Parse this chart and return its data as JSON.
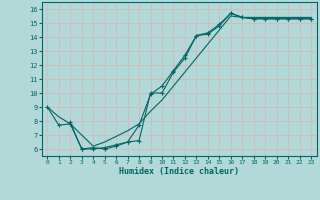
{
  "xlabel": "Humidex (Indice chaleur)",
  "bg_color": "#b2d8d8",
  "grid_color": "#d4b8b8",
  "line_color": "#006666",
  "xlim": [
    -0.5,
    23.5
  ],
  "ylim": [
    5.5,
    16.5
  ],
  "yticks": [
    6,
    7,
    8,
    9,
    10,
    11,
    12,
    13,
    14,
    15,
    16
  ],
  "xticks": [
    0,
    1,
    2,
    3,
    4,
    5,
    6,
    7,
    8,
    9,
    10,
    11,
    12,
    13,
    14,
    15,
    16,
    17,
    18,
    19,
    20,
    21,
    22,
    23
  ],
  "line1_x": [
    0,
    1,
    2,
    3,
    4,
    5,
    6,
    7,
    8,
    9,
    10,
    11,
    12,
    13,
    14,
    15,
    16,
    17,
    18,
    19,
    20,
    21,
    22,
    23
  ],
  "line1_y": [
    9.0,
    7.7,
    7.8,
    6.0,
    6.0,
    6.1,
    6.3,
    6.5,
    6.6,
    10.0,
    10.0,
    11.5,
    12.5,
    14.1,
    14.2,
    14.8,
    15.7,
    15.4,
    15.3,
    15.3,
    15.3,
    15.3,
    15.3,
    15.3
  ],
  "line2_x": [
    2,
    3,
    4,
    5,
    6,
    7,
    8,
    9,
    10,
    11,
    12,
    13,
    14,
    15,
    16,
    17,
    18,
    19,
    20,
    21,
    22,
    23
  ],
  "line2_y": [
    7.9,
    6.0,
    6.1,
    6.0,
    6.2,
    6.5,
    7.7,
    9.9,
    10.5,
    11.6,
    12.7,
    14.1,
    14.3,
    14.9,
    15.7,
    15.4,
    15.3,
    15.3,
    15.3,
    15.3,
    15.3,
    15.3
  ],
  "line3_x": [
    0,
    1,
    2,
    3,
    4,
    5,
    6,
    7,
    8,
    9,
    10,
    11,
    12,
    13,
    14,
    15,
    16,
    17,
    18,
    19,
    20,
    21,
    22,
    23
  ],
  "line3_y": [
    9.0,
    8.3,
    7.8,
    7.0,
    6.2,
    6.5,
    6.9,
    7.3,
    7.8,
    8.7,
    9.5,
    10.5,
    11.5,
    12.5,
    13.5,
    14.5,
    15.5,
    15.4,
    15.4,
    15.4,
    15.4,
    15.4,
    15.4,
    15.4
  ]
}
